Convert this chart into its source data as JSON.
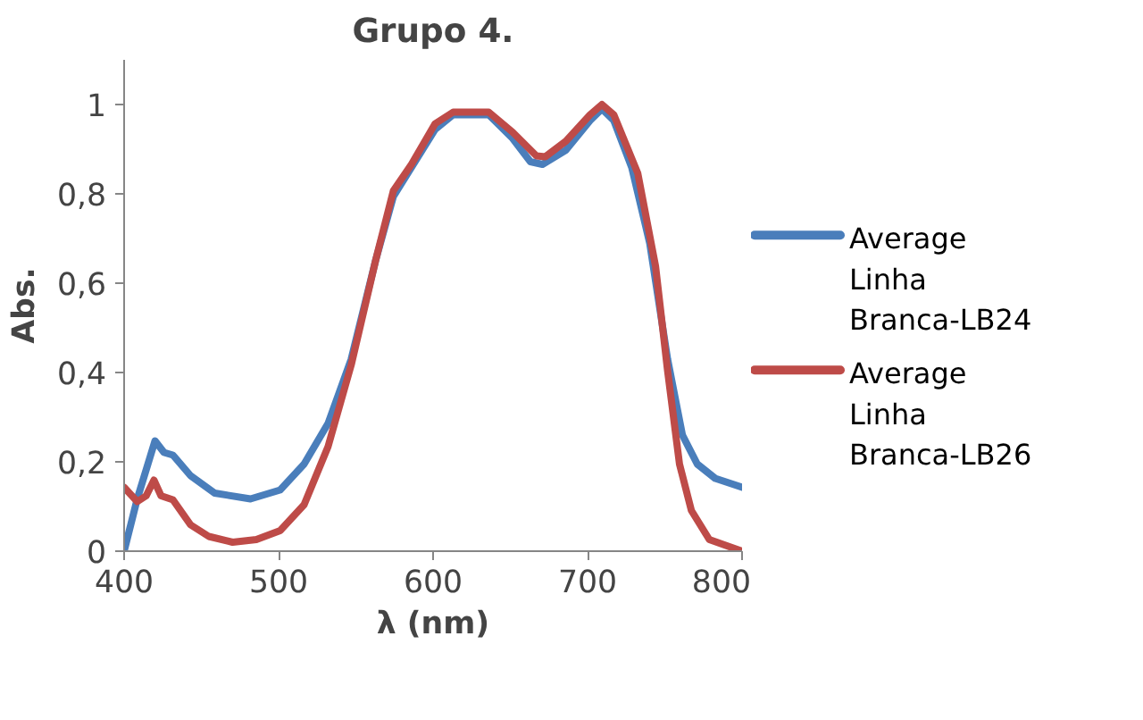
{
  "chart_data": {
    "type": "line",
    "title": "Grupo 4.",
    "xlabel": "λ (nm)",
    "ylabel": "Abs.",
    "xlim": [
      400,
      800
    ],
    "xticks": [
      400,
      500,
      600,
      700,
      800
    ],
    "ylim": [
      0,
      1.1
    ],
    "yticks": [
      0,
      {
        "value": 0.2,
        "label": "0,2"
      },
      {
        "value": 0.4,
        "label": "0,4"
      },
      {
        "value": 0.6,
        "label": "0,6"
      },
      {
        "value": 0.8,
        "label": "0,8"
      },
      1
    ],
    "grid": false,
    "legend": "right",
    "marker": "none",
    "line_style": "solid",
    "series": [
      {
        "name": "Average Linha Branca-LB24",
        "color": "#4a7ebb",
        "x": [
          400,
          408.5,
          420,
          425.8,
          431.6,
          443,
          458.6,
          481.8,
          501,
          516.5,
          532,
          547,
          562.8,
          574.3,
          586,
          601.3,
          613,
          636,
          651.5,
          663,
          670.8,
          686,
          701.6,
          709.3,
          717,
          728.6,
          740.2,
          751.8,
          761.4,
          771,
          782.6,
          800
        ],
        "values": [
          0,
          0.117,
          0.247,
          0.221,
          0.215,
          0.169,
          0.13,
          0.117,
          0.137,
          0.195,
          0.286,
          0.43,
          0.651,
          0.794,
          0.859,
          0.944,
          0.977,
          0.977,
          0.924,
          0.872,
          0.866,
          0.898,
          0.964,
          0.99,
          0.964,
          0.859,
          0.69,
          0.43,
          0.26,
          0.195,
          0.163,
          0.143
        ]
      },
      {
        "name": "Average Linha Branca-LB26",
        "color": "#be4b48",
        "x": [
          400,
          408.5,
          414.3,
          419.3,
          423.9,
          431.6,
          443,
          454.8,
          470.2,
          485.6,
          501,
          516.5,
          532,
          547,
          562.8,
          574.3,
          586,
          601.3,
          613,
          636,
          651.5,
          666.9,
          672.6,
          686,
          701.6,
          709.3,
          717,
          732.5,
          744,
          751.8,
          759.5,
          767.2,
          778.8,
          800
        ],
        "values": [
          0.143,
          0.111,
          0.124,
          0.159,
          0.124,
          0.115,
          0.059,
          0.033,
          0.02,
          0.026,
          0.046,
          0.104,
          0.234,
          0.417,
          0.651,
          0.807,
          0.866,
          0.957,
          0.983,
          0.983,
          0.938,
          0.885,
          0.883,
          0.918,
          0.977,
          1.0,
          0.977,
          0.846,
          0.638,
          0.404,
          0.195,
          0.091,
          0.026,
          0
        ]
      }
    ]
  }
}
